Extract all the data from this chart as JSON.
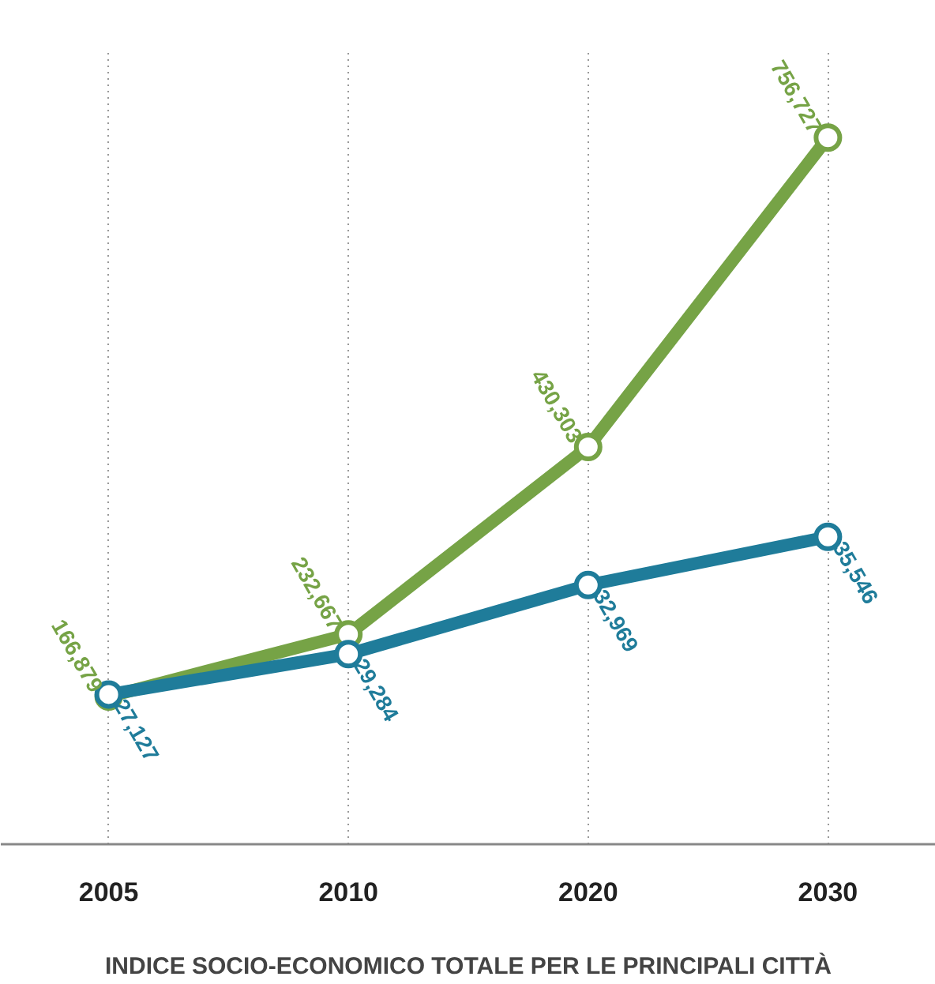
{
  "chart_data": {
    "type": "line",
    "xlabel": "INDICE SOCIO-ECONOMICO TOTALE PER LE PRINCIPALI CITTÀ",
    "categories": [
      "2005",
      "2010",
      "2020",
      "2030"
    ],
    "series": [
      {
        "color": "#76a346",
        "values": [
          166879,
          232667,
          430303,
          756727
        ],
        "value_labels": [
          "166,879",
          "232,667",
          "430,303",
          "756,727"
        ]
      },
      {
        "color": "#1f7c9a",
        "values": [
          27127,
          29284,
          32969,
          35546
        ],
        "value_labels": [
          "27,127",
          "29,284",
          "32,969",
          "35,546"
        ],
        "axis": "y2"
      }
    ],
    "tick_labels": "x",
    "grid": "x",
    "marker": "circle",
    "line_style": "solid"
  }
}
